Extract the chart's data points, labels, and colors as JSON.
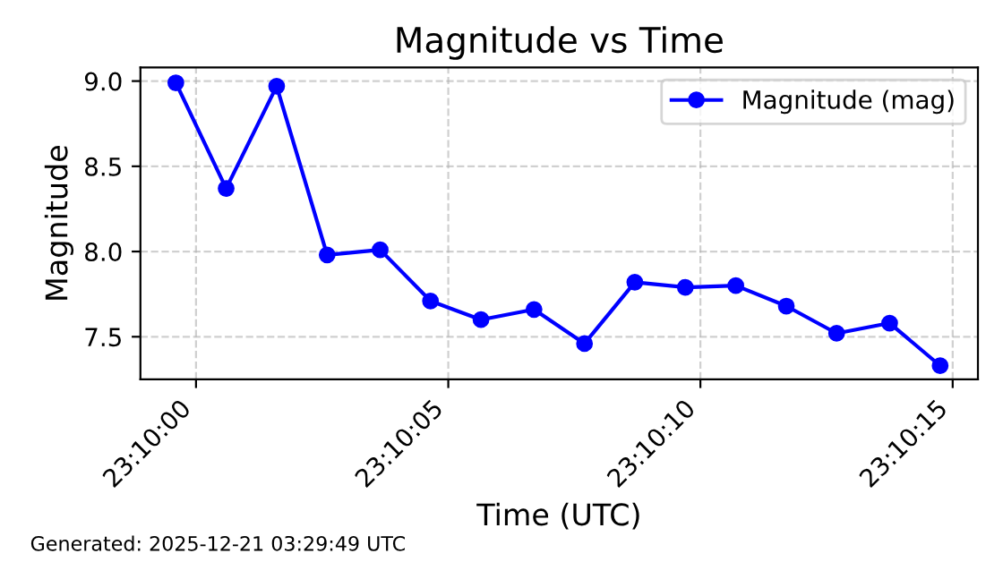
{
  "chart_data": {
    "type": "line",
    "title": "Magnitude vs Time",
    "xlabel": "Time (UTC)",
    "ylabel": "Magnitude",
    "annotations": [
      "Generated: 2025-12-21 03:29:49 UTC"
    ],
    "x": [
      23.166556,
      23.166833,
      23.167111,
      23.167389,
      23.167681,
      23.167958,
      23.168236,
      23.168528,
      23.168806,
      23.169083,
      23.169361,
      23.169639,
      23.169917,
      23.170194,
      23.170486,
      23.170764
    ],
    "series": [
      {
        "name": "Magnitude (mag)",
        "color": "#0000ff",
        "values": [
          8.99,
          8.37,
          8.97,
          7.98,
          8.01,
          7.71,
          7.6,
          7.66,
          7.46,
          7.82,
          7.79,
          7.8,
          7.68,
          7.52,
          7.58,
          7.33
        ]
      }
    ],
    "xlim": [
      23.166361,
      23.170972
    ],
    "xticks": [
      {
        "value": 23.166667,
        "label": "23:10:00"
      },
      {
        "value": 23.168056,
        "label": "23:10:05"
      },
      {
        "value": 23.169444,
        "label": "23:10:10"
      },
      {
        "value": 23.170833,
        "label": "23:10:15"
      }
    ],
    "ylim": [
      7.25,
      9.08
    ],
    "yticks": [
      {
        "value": 7.5,
        "label": "7.5"
      },
      {
        "value": 8.0,
        "label": "8.0"
      },
      {
        "value": 8.5,
        "label": "8.5"
      },
      {
        "value": 9.0,
        "label": "9.0"
      }
    ],
    "grid": true,
    "legend": "top right",
    "marker": "circle",
    "line_style": "solid"
  }
}
